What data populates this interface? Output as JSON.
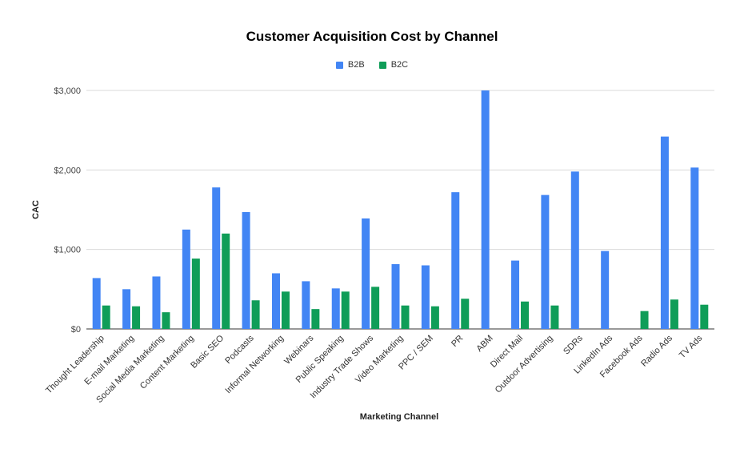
{
  "chart_data": {
    "type": "bar",
    "title": "Customer Acquisition Cost by Channel",
    "xlabel": "Marketing Channel",
    "ylabel": "CAC",
    "ylim": [
      0,
      3000
    ],
    "yticks": [
      0,
      1000,
      2000,
      3000
    ],
    "ytick_labels": [
      "$0",
      "$1,000",
      "$2,000",
      "$3,000"
    ],
    "grid": true,
    "legend_position": "top-center",
    "categories": [
      "Thought Leadership",
      "E-mail Marketing",
      "Social Media Marketing",
      "Content Marketing",
      "Basic SEO",
      "Podcasts",
      "Informal Networking",
      "Webinars",
      "Public Speaking",
      "Industry Trade Shows",
      "Video Marketing",
      "PPC / SEM",
      "PR",
      "ABM",
      "Direct Mail",
      "Outdoor Advertising",
      "SDRs",
      "LinkedIn Ads",
      "Facebook Ads",
      "Radio Ads",
      "TV Ads"
    ],
    "series": [
      {
        "name": "B2B",
        "color": "#4285f4",
        "values": [
          640,
          500,
          660,
          1250,
          1780,
          1470,
          700,
          600,
          510,
          1390,
          815,
          800,
          1720,
          3000,
          860,
          1685,
          1980,
          980,
          null,
          2420,
          2030
        ]
      },
      {
        "name": "B2C",
        "color": "#0f9d58",
        "values": [
          295,
          285,
          210,
          885,
          1200,
          360,
          470,
          250,
          470,
          530,
          295,
          285,
          380,
          null,
          345,
          295,
          null,
          null,
          225,
          370,
          305
        ]
      }
    ]
  }
}
